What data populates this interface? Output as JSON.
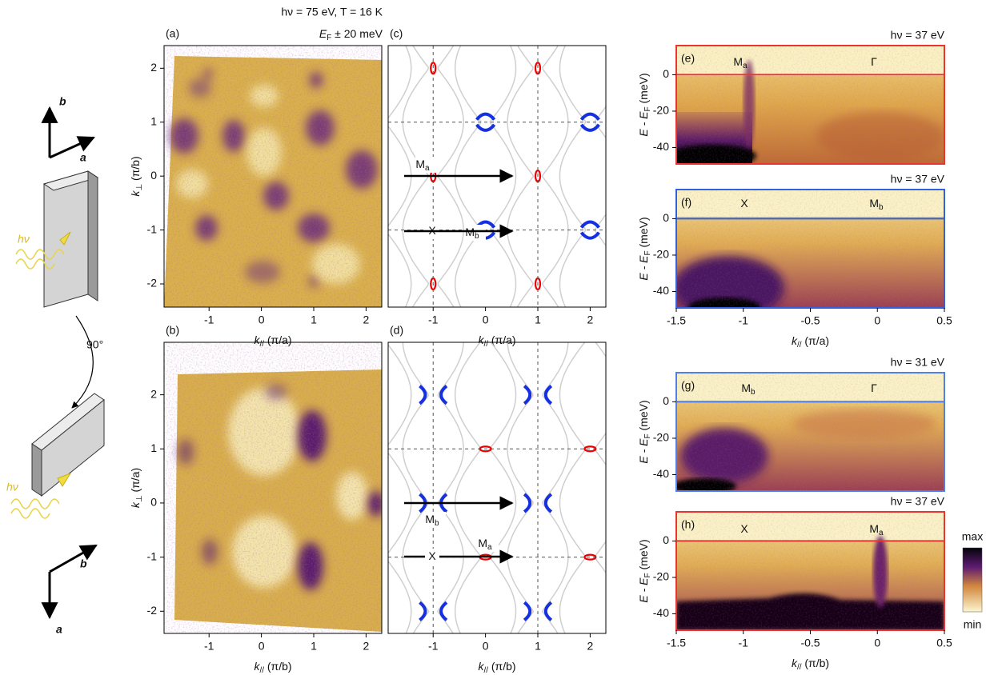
{
  "header": {
    "line1": "hν = 75 eV, T = 16 K",
    "line2": {
      "main": "E",
      "sub": "F",
      "unit": " ± 20 meV"
    }
  },
  "schematic": {
    "top_b": "b",
    "top_a": "a",
    "hv_top": "hν",
    "rotation": "90°",
    "hv_bottom": "hν",
    "bottom_b": "b",
    "bottom_a": "a"
  },
  "colorbar": {
    "max": "max",
    "min": "min"
  },
  "panels": [
    {
      "label": "(a)",
      "xlim": [
        -1.86,
        2.3
      ],
      "ylim": [
        -2.43,
        2.42
      ],
      "xticks": [
        -1,
        0,
        1,
        2
      ],
      "yticks": [
        -2,
        -1,
        0,
        1,
        2
      ],
      "xlabel": {
        "main": "k",
        "sub": "//",
        "unit": " (π/a)"
      },
      "ylabel": {
        "main": "k",
        "sub": "⊥",
        "unit": " (π/b)"
      }
    },
    {
      "label": "(b)",
      "xlim": [
        -1.86,
        2.3
      ],
      "ylim": [
        -2.41,
        2.97
      ],
      "xticks": [
        -1,
        0,
        1,
        2
      ],
      "yticks": [
        -2,
        -1,
        0,
        1,
        2
      ],
      "xlabel": {
        "main": "k",
        "sub": "//",
        "unit": " (π/b)"
      },
      "ylabel": {
        "main": "k",
        "sub": "⊥",
        "unit": " (π/a)"
      }
    },
    {
      "label": "(c)",
      "xlim": [
        -1.86,
        2.3
      ],
      "ylim": [
        -2.43,
        2.42
      ],
      "xticks": [
        -1,
        0,
        1,
        2
      ],
      "xlabel": {
        "main": "k",
        "sub": "//",
        "unit": " (π/a)"
      },
      "dashed_x": [
        -1,
        1
      ],
      "dashed_y": [
        -1,
        1
      ],
      "annotations": [
        {
          "main": "M",
          "sub": "a"
        },
        {
          "main": "X"
        },
        {
          "main": "M",
          "sub": "b"
        }
      ]
    },
    {
      "label": "(d)",
      "xlim": [
        -1.86,
        2.3
      ],
      "ylim": [
        -2.41,
        2.97
      ],
      "xticks": [
        -1,
        0,
        1,
        2
      ],
      "xlabel": {
        "main": "k",
        "sub": "//",
        "unit": " (π/b)"
      },
      "dashed_x": [
        -1,
        1
      ],
      "dashed_y": [
        -1,
        1
      ],
      "annotations": [
        {
          "main": "M",
          "sub": "b"
        },
        {
          "main": "X"
        },
        {
          "main": "M",
          "sub": "a"
        }
      ]
    },
    {
      "label": "(e)",
      "title": "hν = 37 eV",
      "frame_color": "#e8352f",
      "xlim": [
        -1.5,
        0.5
      ],
      "ylim": [
        -49,
        16
      ],
      "yticks": [
        -40,
        -20,
        0
      ],
      "reference_line": 0,
      "ylabel": {
        "main": "E - E",
        "sub": "F",
        "unit": " (meV)"
      },
      "annotations": [
        {
          "main": "M",
          "sub": "a"
        },
        {
          "main": "Γ"
        }
      ]
    },
    {
      "label": "(f)",
      "title": "hν = 37 eV",
      "frame_color": "#2f62e0",
      "xlim": [
        -1.5,
        0.5
      ],
      "ylim": [
        -49,
        16
      ],
      "yticks": [
        -40,
        -20,
        0
      ],
      "reference_line": 0,
      "xticks": [
        -1.5,
        -1.0,
        -0.5,
        0,
        0.5
      ],
      "xlabel": {
        "main": "k",
        "sub": "//",
        "unit": " (π/a)"
      },
      "ylabel": {
        "main": "E - E",
        "sub": "F",
        "unit": " (meV)"
      },
      "annotations": [
        {
          "main": "X"
        },
        {
          "main": "M",
          "sub": "b"
        }
      ]
    },
    {
      "label": "(g)",
      "title": "hν = 31 eV",
      "frame_color": "#4f7fe8",
      "xlim": [
        -1.5,
        0.5
      ],
      "ylim": [
        -49,
        16
      ],
      "yticks": [
        -40,
        -20,
        0
      ],
      "reference_line": 0,
      "ylabel": {
        "main": "E - E",
        "sub": "F",
        "unit": " (meV)"
      },
      "annotations": [
        {
          "main": "M",
          "sub": "b"
        },
        {
          "main": "Γ"
        }
      ]
    },
    {
      "label": "(h)",
      "title": "hν = 37 eV",
      "frame_color": "#e8352f",
      "xlim": [
        -1.5,
        0.5
      ],
      "ylim": [
        -49,
        16
      ],
      "yticks": [
        -40,
        -20,
        0
      ],
      "reference_line": 0,
      "xticks": [
        -1.5,
        -1.0,
        -0.5,
        0,
        0.5
      ],
      "xlabel": {
        "main": "k",
        "sub": "//",
        "unit": " (π/b)"
      },
      "ylabel": {
        "main": "E - E",
        "sub": "F",
        "unit": " (meV)"
      },
      "annotations": [
        {
          "main": "X"
        },
        {
          "main": "M",
          "sub": "a"
        }
      ]
    }
  ]
}
